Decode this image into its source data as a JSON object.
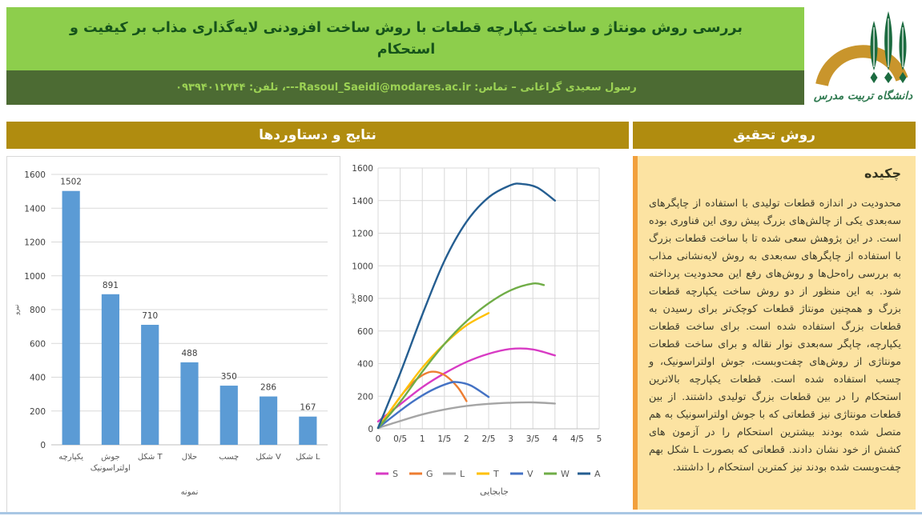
{
  "page": {
    "title": "بررسی روش مونتاژ و ساخت یکپارچه قطعات با روش ساخت افزودنی لایه‌گذاری مذاب بر کیفیت و استحکام",
    "author_line": "رسول سعیدی گراغانی – تماس: Rasoul_Saeidi@modares.ac.ir---، تلفن: ۰۹۳۹۴۰۱۲۷۴۴"
  },
  "logo": {
    "university_name": "دانشگاه تربیت مدرس",
    "arch_color": "#C9952C",
    "tree_color": "#1C6B40"
  },
  "sections": {
    "results_header": "نتایج و دستاوردها",
    "method_header": "روش تحقیق"
  },
  "abstract": {
    "heading": "چکیده",
    "body": "محدودیت در اندازه قطعات تولیدی با استفاده از چاپگرهای سه‌بعدی یکی از چالش‌های بزرگ پیش روی این فناوری بوده است. در این پژوهش سعی شده تا با ساخت قطعات بزرگ با استفاده از چاپگرهای سه‌بعدی به روش لایه‌نشانی مذاب به بررسی راه‌حل‌ها و روش‌های رفع این محدودیت پرداخته شود. به این منظور از دو روش ساخت یکپارچه قطعات بزرگ و همچنین مونتاژ قطعات کوچک‌تر برای رسیدن به قطعات بزرگ استفاده شده است. برای ساخت قطعات یکپارچه، چاپگر سه‌بعدی نوار نقاله و برای ساخت قطعات مونتاژی از روش‌های چفت‌وبست، جوش اولتراسونیک، و چسب استفاده شده است. قطعات یکپارچه بالاترین استحکام را در بین قطعات بزرگ تولیدی داشتند. از بین قطعات مونتاژی نیز قطعاتی که با جوش اولتراسونیک به هم متصل شده بودند بیشترین استحکام را در آزمون های کشش از خود نشان دادند. قطعاتی که بصورت L شکل بهم چفت‌وبست شده بودند نیز کمترین استحکام را داشتند."
  },
  "colors": {
    "green_light": "#8DCE4C",
    "green_dark": "#4C6B33",
    "title_green": "#16531B",
    "subtitle_green": "#9CD254",
    "gold": "#B08C0F",
    "cream": "#FCE3A2",
    "orange_border": "#F2A03D",
    "bottom_line": "#A9C7E4"
  },
  "chart_data": [
    {
      "type": "bar",
      "title": "",
      "categories": [
        "یکپارچه",
        "جوش اولتراسونیک",
        "شکل T",
        "حلال",
        "چسب",
        "شکل V",
        "شکل L"
      ],
      "values": [
        1502,
        891,
        710,
        488,
        350,
        286,
        167
      ],
      "xlabel": "نمونه",
      "ylabel": "نیرو",
      "ylim": [
        0,
        1600
      ],
      "ytick_step": 200,
      "bar_color": "#5B9BD5",
      "grid": true,
      "data_labels": true
    },
    {
      "type": "line",
      "title": "",
      "xlabel": "جابجایی",
      "ylabel": "نیرو",
      "xlim": [
        0,
        5
      ],
      "ylim": [
        0,
        1600
      ],
      "xtick_step": 0.5,
      "ytick_step": 200,
      "xtick_labels": [
        "0",
        "0/5",
        "1",
        "1/5",
        "2",
        "2/5",
        "3",
        "3/5",
        "4",
        "4/5",
        "5"
      ],
      "grid": true,
      "legend_position": "bottom",
      "series": [
        {
          "name": "S",
          "color": "#D83BC4",
          "points": [
            [
              0,
              45
            ],
            [
              0.5,
              150
            ],
            [
              1,
              255
            ],
            [
              1.5,
              340
            ],
            [
              2,
              410
            ],
            [
              2.5,
              460
            ],
            [
              3,
              490
            ],
            [
              3.5,
              487
            ],
            [
              4,
              450
            ]
          ]
        },
        {
          "name": "G",
          "color": "#ED7D31",
          "points": [
            [
              0,
              5
            ],
            [
              0.3,
              120
            ],
            [
              0.6,
              230
            ],
            [
              0.9,
              310
            ],
            [
              1.2,
              350
            ],
            [
              1.5,
              330
            ],
            [
              1.8,
              255
            ],
            [
              2,
              170
            ]
          ]
        },
        {
          "name": "L",
          "color": "#A5A5A5",
          "points": [
            [
              0,
              5
            ],
            [
              0.5,
              48
            ],
            [
              1,
              88
            ],
            [
              1.5,
              118
            ],
            [
              2,
              140
            ],
            [
              2.5,
              153
            ],
            [
              3,
              160
            ],
            [
              3.5,
              162
            ],
            [
              4,
              155
            ]
          ]
        },
        {
          "name": "T",
          "color": "#FFC000",
          "points": [
            [
              0,
              5
            ],
            [
              0.5,
              195
            ],
            [
              1,
              375
            ],
            [
              1.5,
              520
            ],
            [
              2,
              635
            ],
            [
              2.5,
              710
            ]
          ]
        },
        {
          "name": "V",
          "color": "#4472C4",
          "points": [
            [
              0,
              5
            ],
            [
              0.4,
              90
            ],
            [
              0.8,
              170
            ],
            [
              1.2,
              235
            ],
            [
              1.6,
              280
            ],
            [
              1.8,
              286
            ],
            [
              2.1,
              265
            ],
            [
              2.5,
              195
            ]
          ]
        },
        {
          "name": "W",
          "color": "#70AD47",
          "points": [
            [
              0,
              5
            ],
            [
              0.5,
              165
            ],
            [
              1,
              350
            ],
            [
              1.5,
              520
            ],
            [
              2,
              660
            ],
            [
              2.5,
              770
            ],
            [
              3,
              850
            ],
            [
              3.5,
              891
            ],
            [
              3.75,
              882
            ]
          ]
        },
        {
          "name": "A",
          "color": "#255E91",
          "points": [
            [
              0,
              5
            ],
            [
              0.5,
              340
            ],
            [
              1,
              700
            ],
            [
              1.5,
              1030
            ],
            [
              2,
              1270
            ],
            [
              2.5,
              1420
            ],
            [
              3,
              1495
            ],
            [
              3.25,
              1502
            ],
            [
              3.6,
              1480
            ],
            [
              4,
              1400
            ]
          ]
        }
      ]
    }
  ]
}
